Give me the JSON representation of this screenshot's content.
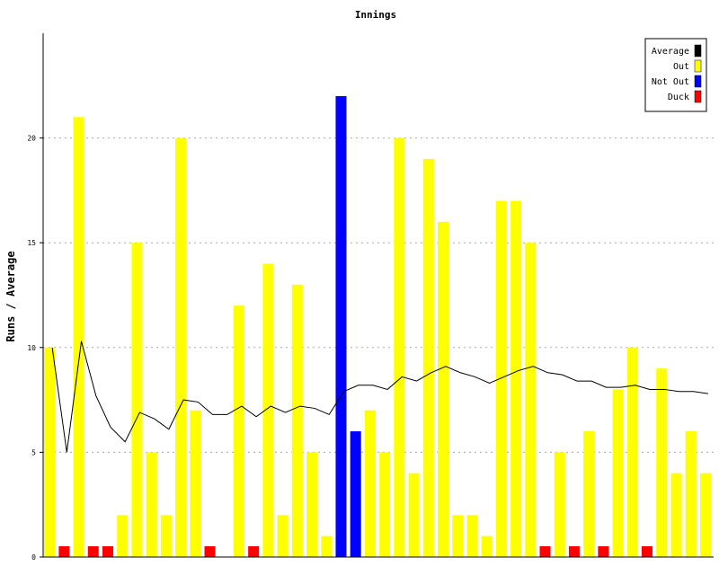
{
  "chart_data": {
    "type": "bar",
    "title": "Innings",
    "xlabel": "",
    "ylabel": "Runs / Average",
    "ylim": [
      0,
      25
    ],
    "yticks": [
      0,
      5,
      10,
      15,
      20
    ],
    "grid": true,
    "legend_position": "top-right",
    "legend": [
      {
        "name": "Average",
        "color": "#000000"
      },
      {
        "name": "Out",
        "color": "#ffff00"
      },
      {
        "name": "Not Out",
        "color": "#0000ff"
      },
      {
        "name": "Duck",
        "color": "#ff0000"
      }
    ],
    "bars": [
      {
        "value": 10,
        "status": "Out"
      },
      {
        "value": 0,
        "status": "Duck"
      },
      {
        "value": 21,
        "status": "Out"
      },
      {
        "value": 0,
        "status": "Duck"
      },
      {
        "value": 0,
        "status": "Duck"
      },
      {
        "value": 2,
        "status": "Out"
      },
      {
        "value": 15,
        "status": "Out"
      },
      {
        "value": 5,
        "status": "Out"
      },
      {
        "value": 2,
        "status": "Out"
      },
      {
        "value": 20,
        "status": "Out"
      },
      {
        "value": 7,
        "status": "Out"
      },
      {
        "value": 0,
        "status": "Duck"
      },
      {
        "value": null,
        "status": "None"
      },
      {
        "value": 12,
        "status": "Out"
      },
      {
        "value": 0,
        "status": "Duck"
      },
      {
        "value": 14,
        "status": "Out"
      },
      {
        "value": 2,
        "status": "Out"
      },
      {
        "value": 13,
        "status": "Out"
      },
      {
        "value": 5,
        "status": "Out"
      },
      {
        "value": 1,
        "status": "Out"
      },
      {
        "value": 22,
        "status": "Not Out"
      },
      {
        "value": 6,
        "status": "Not Out"
      },
      {
        "value": 7,
        "status": "Out"
      },
      {
        "value": 5,
        "status": "Out"
      },
      {
        "value": 20,
        "status": "Out"
      },
      {
        "value": 4,
        "status": "Out"
      },
      {
        "value": 19,
        "status": "Out"
      },
      {
        "value": 16,
        "status": "Out"
      },
      {
        "value": 2,
        "status": "Out"
      },
      {
        "value": 2,
        "status": "Out"
      },
      {
        "value": 1,
        "status": "Out"
      },
      {
        "value": 17,
        "status": "Out"
      },
      {
        "value": 17,
        "status": "Out"
      },
      {
        "value": 15,
        "status": "Out"
      },
      {
        "value": 0,
        "status": "Duck"
      },
      {
        "value": 5,
        "status": "Out"
      },
      {
        "value": 0,
        "status": "Duck"
      },
      {
        "value": 6,
        "status": "Out"
      },
      {
        "value": 0,
        "status": "Duck"
      },
      {
        "value": 8,
        "status": "Out"
      },
      {
        "value": 10,
        "status": "Out"
      },
      {
        "value": 0,
        "status": "Duck"
      },
      {
        "value": 9,
        "status": "Out"
      },
      {
        "value": 4,
        "status": "Out"
      },
      {
        "value": 6,
        "status": "Out"
      },
      {
        "value": 4,
        "status": "Out"
      }
    ],
    "average": [
      10.0,
      5.0,
      10.3,
      7.7,
      6.2,
      5.5,
      6.9,
      6.6,
      6.1,
      7.5,
      7.4,
      6.8,
      6.8,
      7.2,
      6.7,
      7.2,
      6.9,
      7.2,
      7.1,
      6.8,
      7.9,
      8.2,
      8.2,
      8.0,
      8.6,
      8.4,
      8.8,
      9.1,
      8.8,
      8.6,
      8.3,
      8.6,
      8.9,
      9.1,
      8.8,
      8.7,
      8.4,
      8.4,
      8.1,
      8.1,
      8.2,
      8.0,
      8.0,
      7.9,
      7.9,
      7.8
    ]
  }
}
